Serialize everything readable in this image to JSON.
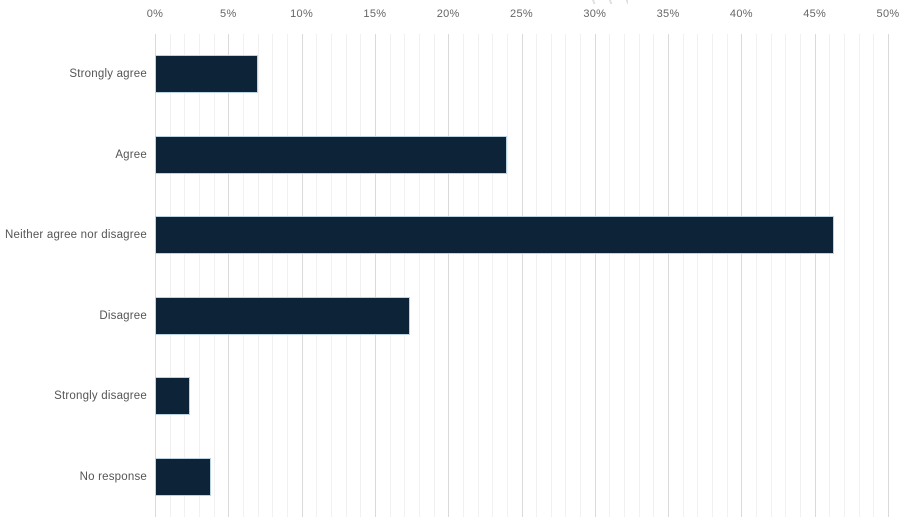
{
  "page": {
    "background": "#ffffff"
  },
  "chart_data": {
    "type": "bar",
    "orientation": "horizontal",
    "title": "",
    "categories": [
      "Strongly agree",
      "Agree",
      "Neither agree nor disagree",
      "Disagree",
      "Strongly disagree",
      "No response"
    ],
    "values": [
      7,
      24,
      46.3,
      17.4,
      2.4,
      3.8
    ],
    "unit": "%",
    "xlabel": "",
    "ylabel": "",
    "xlim": [
      0,
      50
    ],
    "x_ticks": [
      "0%",
      "5%",
      "10%",
      "15%",
      "20%",
      "25%",
      "30%",
      "35%",
      "40%",
      "45%",
      "50%"
    ],
    "x_tick_step_pct": 5,
    "minor_grid_step_pct": 1,
    "grid": true,
    "axis_position": "top",
    "legend": false,
    "colors": {
      "bar_fill": "#0d2337",
      "bar_border": "#b9d3e2",
      "major_gridline": "#dadada",
      "minor_gridline": "#f1f1f1",
      "tick_label": "#666666",
      "category_label": "#555555"
    }
  }
}
